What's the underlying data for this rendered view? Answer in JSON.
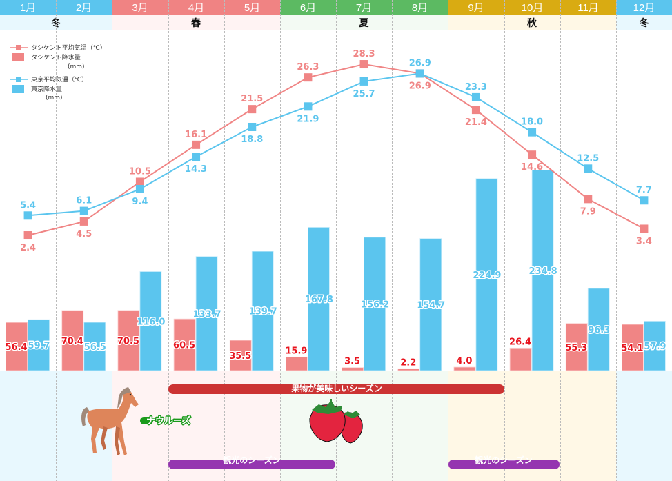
{
  "header": {
    "months": [
      "1月",
      "2月",
      "3月",
      "4月",
      "5月",
      "6月",
      "7月",
      "8月",
      "9月",
      "10月",
      "11月",
      "12月"
    ],
    "seasons": [
      {
        "label": "冬",
        "start": 0,
        "end": 2,
        "color": "#5bc5ee",
        "bg": "#e8f8fe"
      },
      {
        "label": "春",
        "start": 2,
        "end": 5,
        "color": "#f08383",
        "bg": "#fff3f3"
      },
      {
        "label": "夏",
        "start": 5,
        "end": 8,
        "color": "#5cba62",
        "bg": "#f3faf3"
      },
      {
        "label": "秋",
        "start": 8,
        "end": 11,
        "color": "#d9ab12",
        "bg": "#fff8e6"
      },
      {
        "label": "冬",
        "start": 11,
        "end": 12,
        "color": "#5bc5ee",
        "bg": "#e8f8fe"
      }
    ]
  },
  "legend": {
    "tashkent_temp": "タシケント平均気温（℃）",
    "tashkent_rain": "タシケント降水量",
    "tashkent_rain_unit": "(mm)",
    "tokyo_temp": "東京平均気温（℃）",
    "tokyo_rain": "東京降水量",
    "tokyo_rain_unit": "(mm)"
  },
  "colors": {
    "tashkent": "#f08585",
    "tokyo": "#5bc5ee",
    "tashkent_bar_label": "#e8141e",
    "fruit_band": "#cc3333",
    "tourism_band": "#9535b0",
    "nowruz": "#1a9a1a"
  },
  "chart_data": {
    "type": "bar+line",
    "categories": [
      "1月",
      "2月",
      "3月",
      "4月",
      "5月",
      "6月",
      "7月",
      "8月",
      "9月",
      "10月",
      "11月",
      "12月"
    ],
    "series": [
      {
        "name": "タシケント平均気温（℃）",
        "type": "line",
        "values": [
          2.4,
          4.5,
          10.5,
          16.1,
          21.5,
          26.3,
          28.3,
          26.9,
          21.4,
          14.6,
          7.9,
          3.4
        ]
      },
      {
        "name": "東京平均気温（℃）",
        "type": "line",
        "values": [
          5.4,
          6.1,
          9.4,
          14.3,
          18.8,
          21.9,
          25.7,
          26.9,
          23.3,
          18.0,
          12.5,
          7.7
        ]
      },
      {
        "name": "タシケント降水量(mm)",
        "type": "bar",
        "values": [
          56.4,
          70.4,
          70.5,
          60.5,
          35.5,
          15.9,
          3.5,
          2.2,
          4.0,
          26.4,
          55.3,
          54.1
        ]
      },
      {
        "name": "東京降水量(mm)",
        "type": "bar",
        "values": [
          59.7,
          56.5,
          116.0,
          133.7,
          139.7,
          167.8,
          156.2,
          154.7,
          224.9,
          234.8,
          96.3,
          57.9
        ]
      }
    ],
    "temp_labels": {
      "tashkent": [
        "2.4",
        "4.5",
        "10.5",
        "16.1",
        "21.5",
        "26.3",
        "28.3",
        "26.9",
        "21.4",
        "14.6",
        "7.9",
        "3.4"
      ],
      "tokyo": [
        "5.4",
        "6.1",
        "9.4",
        "14.3",
        "18.8",
        "21.9",
        "25.7",
        "26.9",
        "23.3",
        "18.0",
        "12.5",
        "7.7"
      ]
    },
    "rain_labels": {
      "tashkent": [
        "56.4",
        "70.4",
        "70.5",
        "60.5",
        "35.5",
        "15.9",
        "3.5",
        "2.2",
        "4.0",
        "26.4",
        "55.3",
        "54.1"
      ],
      "tokyo": [
        "59.7",
        "56.5",
        "116.0",
        "133.7",
        "139.7",
        "167.8",
        "156.2",
        "154.7",
        "224.9",
        "234.8",
        "96.3",
        "57.9"
      ]
    },
    "grid": "vertical dashed month separators",
    "legend_position": "top-left"
  },
  "events": {
    "fruit_season": {
      "label": "果物が美味しいシーズン",
      "start_month": 4,
      "end_month": 9
    },
    "tourism_season_1": {
      "label": "観光のシーズン",
      "start_month": 4,
      "end_month": 6
    },
    "tourism_season_2": {
      "label": "観光のシーズン",
      "start_month": 9,
      "end_month": 10
    },
    "nowruz": {
      "label": "ナウルーズ",
      "month": 3
    }
  }
}
